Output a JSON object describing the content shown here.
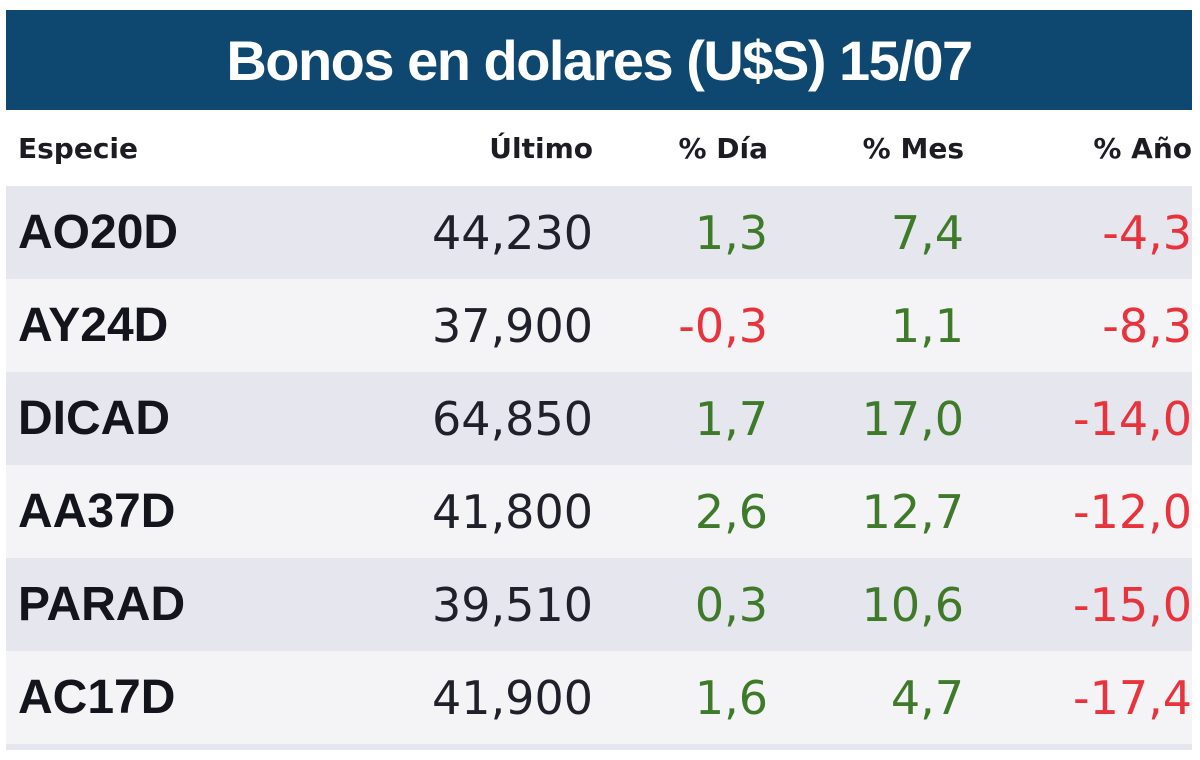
{
  "title": "Bonos en dolares (U$S) 15/07",
  "colors": {
    "header_bg": "#0e4870",
    "positive": "#3f7a2a",
    "negative": "#e8323c"
  },
  "chart_data": {
    "type": "table",
    "title": "Bonos en dolares (U$S) 15/07",
    "columns": [
      "Especie",
      "Último",
      "% Día",
      "% Mes",
      "% Año"
    ],
    "rows": [
      [
        "AO20D",
        "44,230",
        "1,3",
        "7,4",
        "-4,3"
      ],
      [
        "AY24D",
        "37,900",
        "-0,3",
        "1,1",
        "-8,3"
      ],
      [
        "DICAD",
        "64,850",
        "1,7",
        "17,0",
        "-14,0"
      ],
      [
        "AA37D",
        "41,800",
        "2,6",
        "12,7",
        "-12,0"
      ],
      [
        "PARAD",
        "39,510",
        "0,3",
        "10,6",
        "-15,0"
      ],
      [
        "AC17D",
        "41,900",
        "1,6",
        "4,7",
        "-17,4"
      ]
    ]
  }
}
